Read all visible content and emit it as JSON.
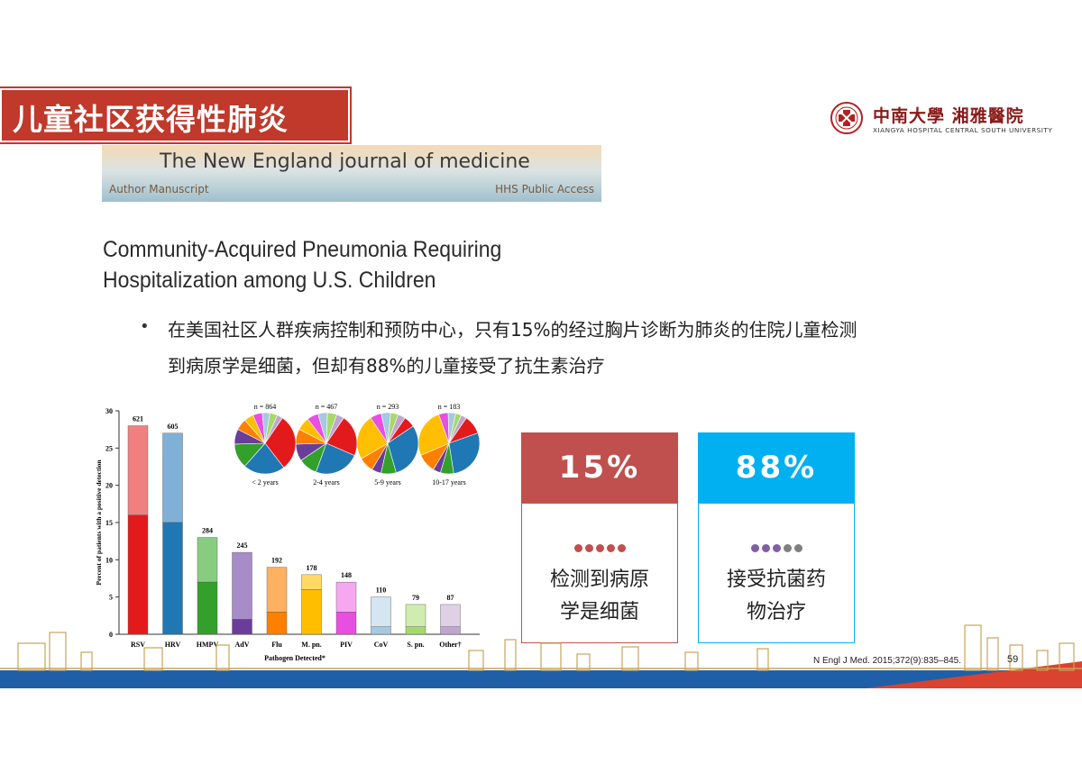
{
  "slide": {
    "title": "儿童社区获得性肺炎",
    "logo": {
      "cn": "中南大學 湘雅醫院",
      "en": "XIANGYA HOSPITAL CENTRAL SOUTH UNIVERSITY",
      "seal_icon": "xiangya-seal-icon"
    },
    "journal_banner": {
      "title": "The New England journal of medicine",
      "left_note": "Author Manuscript",
      "right_note": "HHS Public Access"
    },
    "paper_title_line1": "Community-Acquired Pneumonia Requiring",
    "paper_title_line2": "Hospitalization among U.S. Children",
    "bullet": {
      "marker": "•",
      "line1": "在美国社区人群疾病控制和预防中心，只有15%的经过胸片诊断为肺炎的住院儿童检测",
      "line2": "到病原学是细菌，但却有88%的儿童接受了抗生素治疗"
    },
    "stat_boxes": [
      {
        "value": "15%",
        "label_line1": "检测到病原",
        "label_line2": "学是细菌",
        "color": "#c0504d",
        "dot_colors": [
          "#c0504d",
          "#c0504d",
          "#c0504d",
          "#c0504d",
          "#c0504d"
        ]
      },
      {
        "value": "88%",
        "label_line1": "接受抗菌药",
        "label_line2": "物治疗",
        "color": "#00b0f0",
        "dot_colors": [
          "#7f5fa8",
          "#7f5fa8",
          "#7f5fa8",
          "#7f7f7f",
          "#7f7f7f"
        ]
      }
    ],
    "citation": "N Engl J Med. 2015;372(9):835–845.",
    "page_number": "59"
  },
  "chart_data": [
    {
      "type": "bar",
      "xlabel": "Pathogen Detected*",
      "ylabel": "Percent of patients with a positive detection",
      "ylim": [
        0,
        30
      ],
      "yticks": [
        "0",
        "5",
        "10",
        "15",
        "20",
        "25",
        "30"
      ],
      "categories": [
        "RSV",
        "HRV",
        "HMPV",
        "AdV",
        "Flu",
        "M. pn.",
        "PIV",
        "CoV",
        "S. pn.",
        "Other†"
      ],
      "totals": [
        28,
        27,
        13,
        11,
        9,
        8,
        7,
        5,
        4,
        4
      ],
      "lower_values": [
        16,
        15,
        7,
        2,
        3,
        6,
        3,
        1,
        1,
        1
      ],
      "counts": [
        "621",
        "605",
        "284",
        "245",
        "192",
        "178",
        "148",
        "110",
        "79",
        "87"
      ],
      "colors_dark": [
        "#e31a1c",
        "#1f78b4",
        "#33a02c",
        "#6a3d9a",
        "#ff7f00",
        "#ffbf00",
        "#e84ee0",
        "#a6c8e0",
        "#a6d96a",
        "#c2a5cf"
      ],
      "colors_light": [
        "#f08080",
        "#7fb0d8",
        "#88cc80",
        "#a88cc8",
        "#ffb060",
        "#ffd966",
        "#f5a8f0",
        "#d4e6f2",
        "#d0ecb0",
        "#e0d0e6"
      ]
    },
    {
      "type": "pie",
      "pies": [
        {
          "n_label": "n = 864",
          "age_label": "< 2 years",
          "values": [
            30,
            22,
            13,
            8,
            6,
            5,
            5,
            4,
            4,
            3
          ],
          "colors": [
            "#e31a1c",
            "#1f78b4",
            "#33a02c",
            "#6a3d9a",
            "#ff7f00",
            "#ffbf00",
            "#e84ee0",
            "#a6c8e0",
            "#a6d96a",
            "#c2a5cf"
          ]
        },
        {
          "n_label": "n = 467",
          "age_label": "2-4 years",
          "values": [
            22,
            24,
            10,
            9,
            8,
            7,
            6,
            5,
            5,
            4
          ],
          "colors": [
            "#e31a1c",
            "#1f78b4",
            "#33a02c",
            "#6a3d9a",
            "#ff7f00",
            "#ffbf00",
            "#e84ee0",
            "#a6c8e0",
            "#a6d96a",
            "#c2a5cf"
          ]
        },
        {
          "n_label": "n = 293",
          "age_label": "5-9 years",
          "values": [
            6,
            30,
            8,
            5,
            8,
            24,
            6,
            5,
            4,
            4
          ],
          "colors": [
            "#e31a1c",
            "#1f78b4",
            "#33a02c",
            "#6a3d9a",
            "#ff7f00",
            "#ffbf00",
            "#e84ee0",
            "#a6c8e0",
            "#a6d96a",
            "#c2a5cf"
          ]
        },
        {
          "n_label": "n = 183",
          "age_label": "10-17 years",
          "values": [
            10,
            28,
            7,
            4,
            10,
            26,
            5,
            4,
            3,
            3
          ],
          "colors": [
            "#e31a1c",
            "#1f78b4",
            "#33a02c",
            "#6a3d9a",
            "#ff7f00",
            "#ffbf00",
            "#e84ee0",
            "#a6c8e0",
            "#a6d96a",
            "#c2a5cf"
          ]
        }
      ]
    }
  ],
  "theme": {
    "title_bg": "#c0392b",
    "footer_blue": "#1f5fa8",
    "footer_red": "#d9432f",
    "skyline_gold": "#c8a45a"
  }
}
